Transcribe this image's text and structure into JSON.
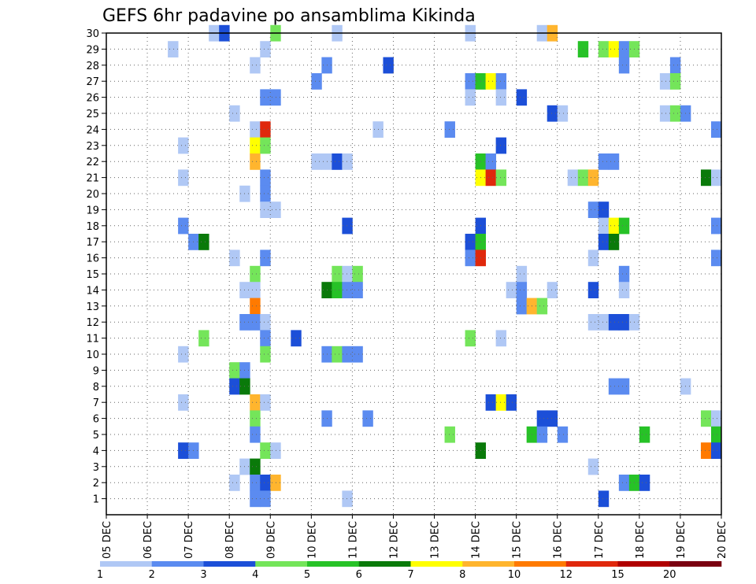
{
  "chart_data": {
    "type": "heatmap",
    "title": "GEFS 6hr padavine po ansamblima Kikinda",
    "xlabel": "",
    "ylabel": "",
    "x_ticks": [
      "05 DEC",
      "06 DEC",
      "07 DEC",
      "08 DEC",
      "09 DEC",
      "10 DEC",
      "11 DEC",
      "12 DEC",
      "13 DEC",
      "14 DEC",
      "15 DEC",
      "16 DEC",
      "17 DEC",
      "18 DEC",
      "19 DEC",
      "20 DEC"
    ],
    "y_ticks": [
      1,
      2,
      3,
      4,
      5,
      6,
      7,
      8,
      9,
      10,
      11,
      12,
      13,
      14,
      15,
      16,
      17,
      18,
      19,
      20,
      21,
      22,
      23,
      24,
      25,
      26,
      27,
      28,
      29,
      30
    ],
    "x_range_days": [
      0,
      15
    ],
    "y_range": [
      0,
      30
    ],
    "grid": "dotted",
    "colorbar_labels": [
      "1",
      "2",
      "3",
      "4",
      "5",
      "6",
      "7",
      "8",
      "10",
      "12",
      "15",
      "20"
    ],
    "colorbar_colors": [
      "#b0c8f5",
      "#5b8bf0",
      "#1c4fd8",
      "#74e55a",
      "#27c227",
      "#0a7a0a",
      "#ffff00",
      "#ffb52e",
      "#ff7a00",
      "#e0280c",
      "#b00000",
      "#7a0010"
    ],
    "cell_width_days": 0.25,
    "cells": [
      [
        2.5,
        30,
        "#b0c8f5"
      ],
      [
        2.75,
        30,
        "#1c4fd8"
      ],
      [
        4.0,
        30,
        "#74e55a"
      ],
      [
        5.5,
        30,
        "#b0c8f5"
      ],
      [
        8.75,
        30,
        "#b0c8f5"
      ],
      [
        10.5,
        30,
        "#b0c8f5"
      ],
      [
        10.75,
        30,
        "#ffb52e"
      ],
      [
        1.5,
        29,
        "#b0c8f5"
      ],
      [
        3.75,
        29,
        "#b0c8f5"
      ],
      [
        11.5,
        29,
        "#27c227"
      ],
      [
        12.0,
        29,
        "#74e55a"
      ],
      [
        12.25,
        29,
        "#ffff00"
      ],
      [
        12.5,
        29,
        "#5b8bf0"
      ],
      [
        12.75,
        29,
        "#74e55a"
      ],
      [
        3.5,
        28,
        "#b0c8f5"
      ],
      [
        5.25,
        28,
        "#5b8bf0"
      ],
      [
        6.75,
        28,
        "#1c4fd8"
      ],
      [
        12.5,
        28,
        "#5b8bf0"
      ],
      [
        13.75,
        28,
        "#5b8bf0"
      ],
      [
        5.0,
        27,
        "#5b8bf0"
      ],
      [
        8.75,
        27,
        "#5b8bf0"
      ],
      [
        9.0,
        27,
        "#27c227"
      ],
      [
        9.25,
        27,
        "#ffff00"
      ],
      [
        9.5,
        27,
        "#5b8bf0"
      ],
      [
        13.5,
        27,
        "#b0c8f5"
      ],
      [
        13.75,
        27,
        "#74e55a"
      ],
      [
        3.75,
        26,
        "#5b8bf0"
      ],
      [
        4.0,
        26,
        "#5b8bf0"
      ],
      [
        8.75,
        26,
        "#b0c8f5"
      ],
      [
        9.5,
        26,
        "#b0c8f5"
      ],
      [
        10.0,
        26,
        "#1c4fd8"
      ],
      [
        3.0,
        25,
        "#b0c8f5"
      ],
      [
        10.75,
        25,
        "#1c4fd8"
      ],
      [
        11.0,
        25,
        "#b0c8f5"
      ],
      [
        13.5,
        25,
        "#b0c8f5"
      ],
      [
        13.75,
        25,
        "#74e55a"
      ],
      [
        14.0,
        25,
        "#5b8bf0"
      ],
      [
        3.5,
        24,
        "#b0c8f5"
      ],
      [
        3.75,
        24,
        "#e0280c"
      ],
      [
        6.5,
        24,
        "#b0c8f5"
      ],
      [
        8.25,
        24,
        "#5b8bf0"
      ],
      [
        14.75,
        24,
        "#5b8bf0"
      ],
      [
        1.75,
        23,
        "#b0c8f5"
      ],
      [
        3.5,
        23,
        "#ffff00"
      ],
      [
        3.75,
        23,
        "#74e55a"
      ],
      [
        9.5,
        23,
        "#1c4fd8"
      ],
      [
        3.5,
        22,
        "#ffb52e"
      ],
      [
        5.0,
        22,
        "#b0c8f5"
      ],
      [
        5.25,
        22,
        "#b0c8f5"
      ],
      [
        5.5,
        22,
        "#1c4fd8"
      ],
      [
        5.75,
        22,
        "#b0c8f5"
      ],
      [
        9.0,
        22,
        "#27c227"
      ],
      [
        9.25,
        22,
        "#5b8bf0"
      ],
      [
        12.0,
        22,
        "#5b8bf0"
      ],
      [
        12.25,
        22,
        "#5b8bf0"
      ],
      [
        1.75,
        21,
        "#b0c8f5"
      ],
      [
        3.75,
        21,
        "#5b8bf0"
      ],
      [
        9.0,
        21,
        "#ffff00"
      ],
      [
        9.25,
        21,
        "#e0280c"
      ],
      [
        9.5,
        21,
        "#74e55a"
      ],
      [
        11.25,
        21,
        "#b0c8f5"
      ],
      [
        11.5,
        21,
        "#74e55a"
      ],
      [
        11.75,
        21,
        "#ffb52e"
      ],
      [
        14.5,
        21,
        "#0a7a0a"
      ],
      [
        14.75,
        21,
        "#b0c8f5"
      ],
      [
        3.25,
        20,
        "#b0c8f5"
      ],
      [
        3.75,
        20,
        "#5b8bf0"
      ],
      [
        3.75,
        19,
        "#b0c8f5"
      ],
      [
        4.0,
        19,
        "#b0c8f5"
      ],
      [
        11.75,
        19,
        "#5b8bf0"
      ],
      [
        12.0,
        19,
        "#1c4fd8"
      ],
      [
        1.75,
        18,
        "#5b8bf0"
      ],
      [
        5.75,
        18,
        "#1c4fd8"
      ],
      [
        9.0,
        18,
        "#1c4fd8"
      ],
      [
        12.0,
        18,
        "#b0c8f5"
      ],
      [
        12.25,
        18,
        "#ffff00"
      ],
      [
        12.5,
        18,
        "#27c227"
      ],
      [
        14.75,
        18,
        "#5b8bf0"
      ],
      [
        2.0,
        17,
        "#5b8bf0"
      ],
      [
        2.25,
        17,
        "#0a7a0a"
      ],
      [
        8.75,
        17,
        "#1c4fd8"
      ],
      [
        9.0,
        17,
        "#27c227"
      ],
      [
        12.0,
        17,
        "#1c4fd8"
      ],
      [
        12.25,
        17,
        "#0a7a0a"
      ],
      [
        3.0,
        16,
        "#b0c8f5"
      ],
      [
        3.75,
        16,
        "#5b8bf0"
      ],
      [
        8.75,
        16,
        "#5b8bf0"
      ],
      [
        9.0,
        16,
        "#e0280c"
      ],
      [
        11.75,
        16,
        "#b0c8f5"
      ],
      [
        14.75,
        16,
        "#5b8bf0"
      ],
      [
        3.5,
        15,
        "#74e55a"
      ],
      [
        5.5,
        15,
        "#74e55a"
      ],
      [
        5.75,
        15,
        "#b0c8f5"
      ],
      [
        6.0,
        15,
        "#74e55a"
      ],
      [
        10.0,
        15,
        "#b0c8f5"
      ],
      [
        12.5,
        15,
        "#5b8bf0"
      ],
      [
        3.25,
        14,
        "#b0c8f5"
      ],
      [
        3.5,
        14,
        "#b0c8f5"
      ],
      [
        5.25,
        14,
        "#0a7a0a"
      ],
      [
        5.5,
        14,
        "#27c227"
      ],
      [
        5.75,
        14,
        "#5b8bf0"
      ],
      [
        6.0,
        14,
        "#5b8bf0"
      ],
      [
        9.75,
        14,
        "#b0c8f5"
      ],
      [
        10.0,
        14,
        "#5b8bf0"
      ],
      [
        10.75,
        14,
        "#b0c8f5"
      ],
      [
        11.75,
        14,
        "#1c4fd8"
      ],
      [
        12.5,
        14,
        "#b0c8f5"
      ],
      [
        3.5,
        13,
        "#ff7a00"
      ],
      [
        10.0,
        13,
        "#5b8bf0"
      ],
      [
        10.25,
        13,
        "#ffb52e"
      ],
      [
        10.5,
        13,
        "#74e55a"
      ],
      [
        3.25,
        12,
        "#5b8bf0"
      ],
      [
        3.5,
        12,
        "#5b8bf0"
      ],
      [
        3.75,
        12,
        "#b0c8f5"
      ],
      [
        11.75,
        12,
        "#b0c8f5"
      ],
      [
        12.0,
        12,
        "#b0c8f5"
      ],
      [
        12.25,
        12,
        "#1c4fd8"
      ],
      [
        12.5,
        12,
        "#1c4fd8"
      ],
      [
        12.75,
        12,
        "#b0c8f5"
      ],
      [
        2.25,
        11,
        "#74e55a"
      ],
      [
        3.75,
        11,
        "#5b8bf0"
      ],
      [
        4.5,
        11,
        "#1c4fd8"
      ],
      [
        8.75,
        11,
        "#74e55a"
      ],
      [
        9.5,
        11,
        "#b0c8f5"
      ],
      [
        1.75,
        10,
        "#b0c8f5"
      ],
      [
        3.75,
        10,
        "#74e55a"
      ],
      [
        5.25,
        10,
        "#5b8bf0"
      ],
      [
        5.5,
        10,
        "#74e55a"
      ],
      [
        5.75,
        10,
        "#5b8bf0"
      ],
      [
        6.0,
        10,
        "#5b8bf0"
      ],
      [
        3.0,
        9,
        "#74e55a"
      ],
      [
        3.25,
        9,
        "#5b8bf0"
      ],
      [
        3.0,
        8,
        "#1c4fd8"
      ],
      [
        3.25,
        8,
        "#0a7a0a"
      ],
      [
        12.25,
        8,
        "#5b8bf0"
      ],
      [
        12.5,
        8,
        "#5b8bf0"
      ],
      [
        14.0,
        8,
        "#b0c8f5"
      ],
      [
        1.75,
        7,
        "#b0c8f5"
      ],
      [
        3.5,
        7,
        "#ffb52e"
      ],
      [
        3.75,
        7,
        "#b0c8f5"
      ],
      [
        9.25,
        7,
        "#1c4fd8"
      ],
      [
        9.5,
        7,
        "#ffff00"
      ],
      [
        9.75,
        7,
        "#1c4fd8"
      ],
      [
        3.5,
        6,
        "#74e55a"
      ],
      [
        5.25,
        6,
        "#5b8bf0"
      ],
      [
        6.25,
        6,
        "#5b8bf0"
      ],
      [
        10.5,
        6,
        "#1c4fd8"
      ],
      [
        10.75,
        6,
        "#1c4fd8"
      ],
      [
        14.5,
        6,
        "#74e55a"
      ],
      [
        14.75,
        6,
        "#b0c8f5"
      ],
      [
        3.5,
        5,
        "#5b8bf0"
      ],
      [
        8.25,
        5,
        "#74e55a"
      ],
      [
        10.25,
        5,
        "#27c227"
      ],
      [
        10.5,
        5,
        "#5b8bf0"
      ],
      [
        11.0,
        5,
        "#5b8bf0"
      ],
      [
        13.0,
        5,
        "#27c227"
      ],
      [
        14.75,
        5,
        "#27c227"
      ],
      [
        1.75,
        4,
        "#1c4fd8"
      ],
      [
        2.0,
        4,
        "#5b8bf0"
      ],
      [
        3.75,
        4,
        "#74e55a"
      ],
      [
        4.0,
        4,
        "#b0c8f5"
      ],
      [
        9.0,
        4,
        "#0a7a0a"
      ],
      [
        14.5,
        4,
        "#ff7a00"
      ],
      [
        14.75,
        4,
        "#1c4fd8"
      ],
      [
        3.25,
        3,
        "#b0c8f5"
      ],
      [
        3.5,
        3,
        "#0a7a0a"
      ],
      [
        11.75,
        3,
        "#b0c8f5"
      ],
      [
        3.0,
        2,
        "#b0c8f5"
      ],
      [
        3.5,
        2,
        "#5b8bf0"
      ],
      [
        3.75,
        2,
        "#1c4fd8"
      ],
      [
        4.0,
        2,
        "#ffb52e"
      ],
      [
        12.5,
        2,
        "#5b8bf0"
      ],
      [
        12.75,
        2,
        "#27c227"
      ],
      [
        13.0,
        2,
        "#1c4fd8"
      ],
      [
        3.5,
        1,
        "#5b8bf0"
      ],
      [
        3.75,
        1,
        "#5b8bf0"
      ],
      [
        5.75,
        1,
        "#b0c8f5"
      ],
      [
        12.0,
        1,
        "#1c4fd8"
      ]
    ]
  }
}
